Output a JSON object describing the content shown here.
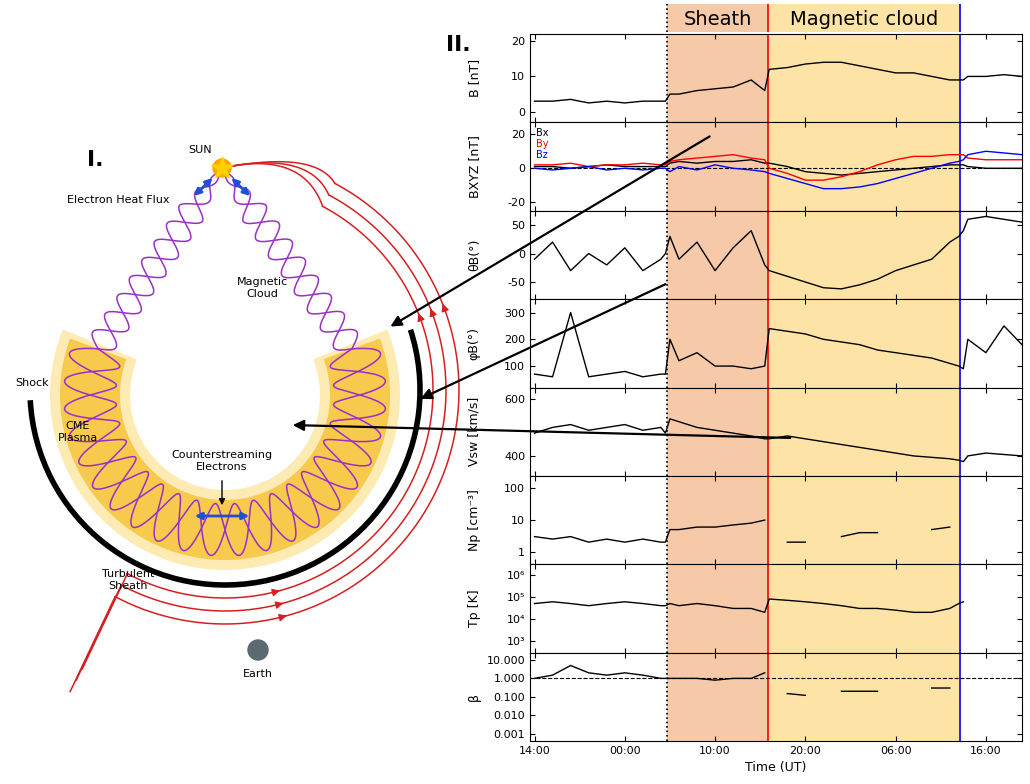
{
  "panel_labels": [
    "I.",
    "II."
  ],
  "diagram": {
    "labels": {
      "sun": "SUN",
      "heat_flux": "Electron Heat Flux",
      "magnetic_cloud": "Magnetic\nCloud",
      "shock": "Shock",
      "cme_plasma": "CME\nPlasma",
      "counterstreaming": "Counterstreaming\nElectrons",
      "sheath": "Turbulent\nSheath",
      "earth": "Earth"
    }
  },
  "regions": [
    {
      "label": "Sheath",
      "start": 14.7,
      "end": 25.9,
      "color": "#f6c9a9"
    },
    {
      "label": "Magnetic cloud",
      "start": 25.9,
      "end": 47.1,
      "color": "#fde4a6"
    }
  ],
  "boundaries": [
    {
      "x": 14.7,
      "color": "black",
      "line_style": "dotted"
    },
    {
      "x": 25.9,
      "color": "red",
      "line_style": "solid"
    },
    {
      "x": 47.1,
      "color": "blue",
      "line_style": "solid"
    }
  ],
  "chart_data": [
    {
      "type": "line",
      "ylabel": "B [nT]",
      "tick_labels": "y",
      "x": [
        0,
        2,
        4,
        6,
        8,
        10,
        12,
        14,
        14.5,
        15,
        16,
        18,
        20,
        22,
        24,
        25.5,
        26,
        28,
        30,
        32,
        34,
        36,
        38,
        40,
        42,
        44,
        46,
        47,
        47.5,
        48,
        50,
        52,
        54
      ],
      "xlim": [
        -0.5,
        54
      ],
      "xticks": [
        0,
        10,
        20,
        30,
        40,
        50
      ],
      "ylim": [
        -3,
        22
      ],
      "yticks": [
        0,
        10,
        20
      ],
      "series": [
        {
          "color": "black",
          "values": [
            3,
            3,
            3.5,
            2.5,
            3,
            2.5,
            3,
            3,
            3,
            5,
            5,
            6,
            6.5,
            7,
            9,
            6,
            12,
            12.5,
            13.5,
            14,
            14,
            13,
            12,
            11,
            11,
            10,
            9,
            9,
            9,
            10,
            10,
            10.5,
            10
          ]
        }
      ]
    },
    {
      "type": "line",
      "ylabel": "BXYZ [nT]",
      "tick_labels": "y",
      "legend": "upper left",
      "hline": 0,
      "x": [
        0,
        2,
        4,
        6,
        8,
        10,
        12,
        14,
        14.5,
        15,
        16,
        18,
        20,
        22,
        24,
        25.5,
        26,
        28,
        30,
        32,
        34,
        36,
        38,
        40,
        42,
        44,
        46,
        47,
        47.5,
        48,
        50,
        52,
        54
      ],
      "xlim": [
        -0.5,
        54
      ],
      "xticks": [
        0,
        10,
        20,
        30,
        40,
        50
      ],
      "ylim": [
        -25,
        27
      ],
      "yticks": [
        -20,
        0,
        20
      ],
      "series": [
        {
          "name": "Bx",
          "color": "black",
          "values": [
            1,
            1,
            0,
            1,
            2,
            1,
            1,
            1,
            1,
            3,
            4,
            3,
            4,
            4,
            5,
            3,
            3,
            1,
            -2,
            -3,
            -4,
            -3,
            -2,
            -1,
            0,
            1,
            2,
            2,
            2,
            1,
            0,
            0,
            0
          ]
        },
        {
          "name": "By",
          "color": "red",
          "values": [
            2,
            2,
            3,
            1,
            2,
            2,
            3,
            2,
            2,
            4,
            5,
            6,
            7,
            8,
            6,
            5,
            0,
            -3,
            -7,
            -7,
            -5,
            -2,
            2,
            5,
            7,
            7,
            8,
            8,
            8,
            6,
            5,
            5,
            5
          ]
        },
        {
          "name": "Bz",
          "color": "blue",
          "values": [
            0,
            -1,
            0,
            1,
            -1,
            0,
            -1,
            0,
            0,
            -2,
            1,
            -1,
            2,
            0,
            -1,
            -2,
            -3,
            -6,
            -9,
            -12,
            -12,
            -11,
            -9,
            -6,
            -3,
            0,
            3,
            4,
            5,
            8,
            10,
            9,
            8
          ]
        }
      ]
    },
    {
      "type": "line",
      "ylabel": "θB(°)",
      "tick_labels": "y",
      "x": [
        0,
        2,
        4,
        6,
        8,
        10,
        12,
        14,
        14.5,
        15,
        16,
        18,
        20,
        22,
        24,
        25.5,
        26,
        28,
        30,
        32,
        34,
        36,
        38,
        40,
        42,
        44,
        46,
        47,
        47.5,
        48,
        50,
        52,
        54
      ],
      "xlim": [
        -0.5,
        54
      ],
      "xticks": [
        0,
        10,
        20,
        30,
        40,
        50
      ],
      "ylim": [
        -80,
        75
      ],
      "yticks": [
        -50,
        0,
        50
      ],
      "series": [
        {
          "color": "black",
          "values": [
            -10,
            20,
            -30,
            0,
            -20,
            10,
            -30,
            -10,
            0,
            30,
            -10,
            20,
            -30,
            10,
            40,
            -20,
            -30,
            -40,
            -50,
            -60,
            -62,
            -55,
            -45,
            -30,
            -20,
            -10,
            20,
            30,
            40,
            60,
            65,
            60,
            55
          ]
        }
      ]
    },
    {
      "type": "line",
      "ylabel": "φB(°)",
      "tick_labels": "y",
      "x": [
        0,
        2,
        4,
        6,
        8,
        10,
        12,
        14,
        14.5,
        15,
        16,
        18,
        20,
        22,
        24,
        25.5,
        26,
        28,
        30,
        32,
        34,
        36,
        38,
        40,
        42,
        44,
        46,
        47,
        47.5,
        48,
        50,
        52,
        54
      ],
      "xlim": [
        -0.5,
        54
      ],
      "xticks": [
        0,
        10,
        20,
        30,
        40,
        50
      ],
      "ylim": [
        20,
        350
      ],
      "yticks": [
        100,
        200,
        300
      ],
      "series": [
        {
          "color": "black",
          "values": [
            70,
            60,
            300,
            60,
            70,
            80,
            60,
            70,
            70,
            200,
            120,
            150,
            100,
            100,
            90,
            100,
            240,
            230,
            220,
            200,
            190,
            180,
            160,
            150,
            140,
            130,
            110,
            100,
            90,
            200,
            150,
            250,
            180
          ]
        }
      ]
    },
    {
      "type": "line",
      "ylabel": "Vsw [km/s]",
      "tick_labels": "y",
      "x": [
        0,
        2,
        4,
        6,
        8,
        10,
        12,
        14,
        14.5,
        15,
        16,
        18,
        20,
        22,
        24,
        25.5,
        26,
        28,
        30,
        32,
        34,
        36,
        38,
        40,
        42,
        44,
        46,
        47,
        47.5,
        48,
        50,
        52,
        54
      ],
      "xlim": [
        -0.5,
        54
      ],
      "xticks": [
        0,
        10,
        20,
        30,
        40,
        50
      ],
      "ylim": [
        330,
        640
      ],
      "yticks": [
        400,
        600
      ],
      "series": [
        {
          "color": "black",
          "values": [
            480,
            500,
            510,
            490,
            500,
            510,
            490,
            500,
            480,
            530,
            520,
            500,
            490,
            480,
            470,
            460,
            460,
            470,
            460,
            450,
            440,
            430,
            420,
            410,
            400,
            395,
            390,
            385,
            380,
            400,
            410,
            405,
            400
          ]
        }
      ]
    },
    {
      "type": "line",
      "ylabel": "Np [cm⁻³]",
      "tick_labels": "y",
      "log": "y",
      "x": [
        0,
        2,
        4,
        6,
        8,
        10,
        12,
        14,
        14.5,
        15,
        16,
        18,
        20,
        22,
        24,
        25.5,
        26,
        28,
        30,
        32,
        34,
        36,
        38,
        40,
        42,
        44,
        46,
        47,
        47.5,
        48,
        50,
        52,
        54
      ],
      "xlim": [
        -0.5,
        54
      ],
      "xticks": [
        0,
        10,
        20,
        30,
        40,
        50
      ],
      "ylim": [
        0.4,
        250
      ],
      "yticks": [
        1,
        10,
        100
      ],
      "series": [
        {
          "color": "black",
          "values": [
            3,
            2.5,
            3,
            2,
            2.5,
            2,
            2.5,
            2,
            2,
            5,
            5,
            6,
            6,
            7,
            8,
            10,
            null,
            2,
            2,
            null,
            3,
            4,
            4,
            null,
            null,
            5,
            6,
            null,
            null,
            null,
            null,
            null,
            null
          ]
        }
      ]
    },
    {
      "type": "line",
      "ylabel": "Tp [K]",
      "tick_labels": "y",
      "log": "y",
      "x": [
        0,
        2,
        4,
        6,
        8,
        10,
        12,
        14,
        14.5,
        15,
        16,
        18,
        20,
        22,
        24,
        25.5,
        26,
        28,
        30,
        32,
        34,
        36,
        38,
        40,
        42,
        44,
        46,
        47,
        47.5,
        48,
        50,
        52,
        54
      ],
      "xlim": [
        -0.5,
        54
      ],
      "xticks": [
        0,
        10,
        20,
        30,
        40,
        50
      ],
      "ylim": [
        300,
        3000000
      ],
      "yticks": [
        {
          "value": 1000,
          "label": "10³"
        },
        {
          "value": 10000,
          "label": "10⁴"
        },
        {
          "value": 100000,
          "label": "10⁵"
        },
        {
          "value": 1000000,
          "label": "10⁶"
        }
      ],
      "series": [
        {
          "color": "black",
          "values": [
            50000,
            60000,
            50000,
            40000,
            50000,
            60000,
            50000,
            40000,
            40000,
            50000,
            40000,
            50000,
            40000,
            30000,
            30000,
            20000,
            80000,
            70000,
            60000,
            50000,
            40000,
            30000,
            30000,
            25000,
            20000,
            20000,
            30000,
            50000,
            60000,
            null,
            null,
            null,
            null
          ]
        }
      ]
    },
    {
      "type": "line",
      "ylabel": "β",
      "log": "y",
      "hline": 1,
      "xlabel": "Time (UT)",
      "x": [
        0,
        2,
        4,
        6,
        8,
        10,
        12,
        14,
        14.5,
        15,
        16,
        18,
        20,
        22,
        24,
        25.5,
        26,
        28,
        30,
        32,
        34,
        36,
        38,
        40,
        42,
        44,
        46,
        47,
        47.5,
        48,
        50,
        52,
        54
      ],
      "xlim": [
        -0.5,
        54
      ],
      "xticks": [
        {
          "value": 0,
          "label": "14:00"
        },
        {
          "value": 10,
          "label": "00:00"
        },
        {
          "value": 20,
          "label": "10:00"
        },
        {
          "value": 30,
          "label": "20:00"
        },
        {
          "value": 40,
          "label": "06:00"
        },
        {
          "value": 50,
          "label": "16:00"
        }
      ],
      "ylim": [
        0.0004,
        25
      ],
      "yticks": [
        {
          "value": 0.001,
          "label": "0.001"
        },
        {
          "value": 0.01,
          "label": "0.010"
        },
        {
          "value": 0.1,
          "label": "0.100"
        },
        {
          "value": 1,
          "label": "1.000"
        },
        {
          "value": 10,
          "label": "10.000"
        }
      ],
      "series": [
        {
          "color": "black",
          "values": [
            1,
            1.5,
            5,
            2,
            1.5,
            2,
            1.5,
            1,
            1,
            1,
            1,
            1,
            0.8,
            1,
            1,
            2,
            null,
            0.15,
            0.12,
            null,
            0.2,
            0.2,
            0.2,
            null,
            null,
            0.3,
            0.3,
            null,
            null,
            null,
            null,
            null,
            null
          ]
        }
      ]
    }
  ]
}
